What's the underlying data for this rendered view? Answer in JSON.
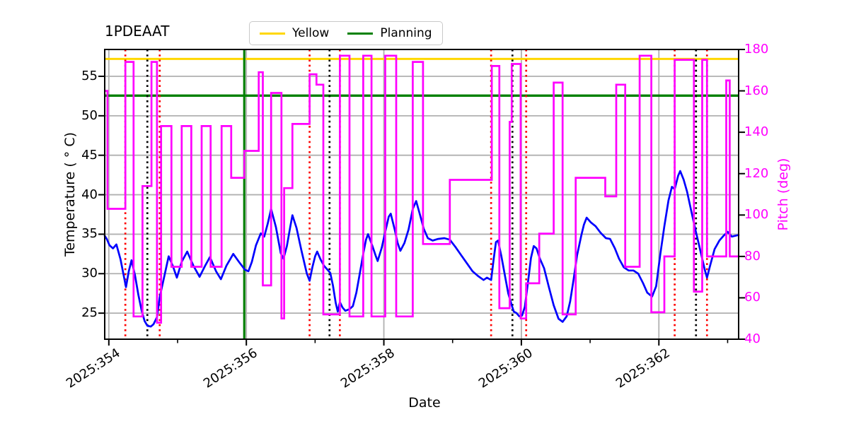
{
  "chart_data": {
    "type": "line",
    "title": "1PDEAAT",
    "xlabel": "Date",
    "ylabel_left": "Temperature ( ° C)",
    "ylabel_right": "Pitch (deg)",
    "xlim_doy": [
      353.94,
      363.16
    ],
    "ylim_left": [
      21.7,
      58.4
    ],
    "ylim_right": [
      40,
      180
    ],
    "grid": true,
    "colors": {
      "temperature_line": "#0000ff",
      "pitch_line": "#ff00ff",
      "yellow_limit": "#ffd700",
      "planning_limit": "#008000",
      "red_event_line": "#ff0000",
      "black_event_line": "#000000",
      "grid_line": "#b0b0b0",
      "right_axis_text": "#ff00ff"
    },
    "x_ticks": [
      {
        "day": 354,
        "label": "2025:354"
      },
      {
        "day": 356,
        "label": "2025:356"
      },
      {
        "day": 358,
        "label": "2025:358"
      },
      {
        "day": 360,
        "label": "2025:360"
      },
      {
        "day": 362,
        "label": "2025:362"
      }
    ],
    "x_minor_ticks": [
      355,
      357,
      359,
      361,
      363
    ],
    "y_left_ticks": [
      25,
      30,
      35,
      40,
      45,
      50,
      55
    ],
    "y_right_ticks": [
      40,
      60,
      80,
      100,
      120,
      140,
      160,
      180
    ],
    "legend": {
      "position": "top-center",
      "entries": [
        {
          "label": "Yellow",
          "color": "#ffd700"
        },
        {
          "label": "Planning",
          "color": "#008000"
        }
      ]
    },
    "hlines": [
      {
        "name": "yellow-limit",
        "axis": "left",
        "value": 57.2,
        "color": "#ffd700",
        "width": 3
      },
      {
        "name": "planning-limit",
        "axis": "left",
        "value": 52.55,
        "color": "#008000",
        "width": 3.4
      }
    ],
    "vlines": [
      {
        "day": 355.97,
        "color": "#008000",
        "style": "solid"
      },
      {
        "day": 354.24,
        "color": "#ff0000",
        "style": "dotted"
      },
      {
        "day": 354.74,
        "color": "#ff0000",
        "style": "dotted"
      },
      {
        "day": 356.92,
        "color": "#ff0000",
        "style": "dotted"
      },
      {
        "day": 357.36,
        "color": "#ff0000",
        "style": "dotted"
      },
      {
        "day": 359.56,
        "color": "#ff0000",
        "style": "dotted"
      },
      {
        "day": 360.07,
        "color": "#ff0000",
        "style": "dotted"
      },
      {
        "day": 362.23,
        "color": "#ff0000",
        "style": "dotted"
      },
      {
        "day": 362.7,
        "color": "#ff0000",
        "style": "dotted"
      },
      {
        "day": 354.56,
        "color": "#000000",
        "style": "dotted"
      },
      {
        "day": 357.21,
        "color": "#000000",
        "style": "dotted"
      },
      {
        "day": 359.87,
        "color": "#000000",
        "style": "dotted"
      },
      {
        "day": 362.54,
        "color": "#000000",
        "style": "dotted"
      }
    ],
    "series": [
      {
        "name": "temperature",
        "axis": "left",
        "color": "#0000ff",
        "style": "line",
        "points": [
          [
            353.94,
            34.8
          ],
          [
            353.97,
            34.4
          ],
          [
            354.01,
            33.6
          ],
          [
            354.06,
            33.2
          ],
          [
            354.11,
            33.7
          ],
          [
            354.17,
            31.8
          ],
          [
            354.22,
            29.6
          ],
          [
            354.25,
            28.3
          ],
          [
            354.29,
            30.3
          ],
          [
            354.33,
            31.7
          ],
          [
            354.38,
            29.8
          ],
          [
            354.43,
            27.3
          ],
          [
            354.48,
            25.2
          ],
          [
            354.52,
            24.0
          ],
          [
            354.56,
            23.4
          ],
          [
            354.61,
            23.3
          ],
          [
            354.65,
            23.6
          ],
          [
            354.7,
            24.5
          ],
          [
            354.74,
            27.0
          ],
          [
            354.79,
            29.0
          ],
          [
            354.83,
            30.6
          ],
          [
            354.87,
            32.2
          ],
          [
            354.93,
            31.0
          ],
          [
            354.99,
            29.5
          ],
          [
            355.06,
            31.5
          ],
          [
            355.14,
            32.8
          ],
          [
            355.23,
            31.0
          ],
          [
            355.32,
            29.6
          ],
          [
            355.4,
            31.0
          ],
          [
            355.47,
            32.1
          ],
          [
            355.56,
            30.3
          ],
          [
            355.63,
            29.3
          ],
          [
            355.71,
            31.0
          ],
          [
            355.81,
            32.5
          ],
          [
            355.9,
            31.4
          ],
          [
            355.98,
            30.5
          ],
          [
            356.03,
            30.3
          ],
          [
            356.08,
            31.5
          ],
          [
            356.14,
            33.6
          ],
          [
            356.21,
            35.1
          ],
          [
            356.26,
            34.7
          ],
          [
            356.31,
            36.3
          ],
          [
            356.36,
            38.2
          ],
          [
            356.43,
            35.9
          ],
          [
            356.5,
            32.6
          ],
          [
            356.54,
            31.9
          ],
          [
            356.59,
            33.5
          ],
          [
            356.64,
            36.0
          ],
          [
            356.67,
            37.4
          ],
          [
            356.73,
            35.8
          ],
          [
            356.8,
            33.0
          ],
          [
            356.88,
            30.0
          ],
          [
            356.92,
            29.1
          ],
          [
            356.96,
            30.8
          ],
          [
            357.0,
            32.2
          ],
          [
            357.03,
            32.8
          ],
          [
            357.08,
            31.8
          ],
          [
            357.13,
            31.0
          ],
          [
            357.19,
            30.4
          ],
          [
            357.22,
            30.1
          ],
          [
            357.26,
            28.5
          ],
          [
            357.3,
            26.3
          ],
          [
            357.33,
            25.2
          ],
          [
            357.36,
            26.4
          ],
          [
            357.4,
            25.7
          ],
          [
            357.44,
            25.3
          ],
          [
            357.5,
            25.5
          ],
          [
            357.55,
            25.9
          ],
          [
            357.6,
            27.6
          ],
          [
            357.65,
            30.0
          ],
          [
            357.7,
            32.5
          ],
          [
            357.74,
            34.3
          ],
          [
            357.77,
            35.0
          ],
          [
            357.83,
            33.6
          ],
          [
            357.88,
            32.3
          ],
          [
            357.91,
            31.6
          ],
          [
            357.97,
            33.3
          ],
          [
            358.02,
            35.3
          ],
          [
            358.07,
            37.2
          ],
          [
            358.1,
            37.6
          ],
          [
            358.16,
            35.5
          ],
          [
            358.2,
            33.9
          ],
          [
            358.24,
            32.9
          ],
          [
            358.3,
            33.9
          ],
          [
            358.36,
            35.6
          ],
          [
            358.42,
            38.2
          ],
          [
            358.47,
            39.2
          ],
          [
            358.53,
            37.3
          ],
          [
            358.58,
            35.7
          ],
          [
            358.64,
            34.5
          ],
          [
            358.71,
            34.2
          ],
          [
            358.79,
            34.4
          ],
          [
            358.88,
            34.5
          ],
          [
            358.96,
            34.3
          ],
          [
            359.04,
            33.4
          ],
          [
            359.12,
            32.4
          ],
          [
            359.21,
            31.3
          ],
          [
            359.29,
            30.3
          ],
          [
            359.37,
            29.7
          ],
          [
            359.45,
            29.2
          ],
          [
            359.5,
            29.5
          ],
          [
            359.56,
            29.2
          ],
          [
            359.6,
            32.0
          ],
          [
            359.63,
            34.0
          ],
          [
            359.66,
            34.2
          ],
          [
            359.71,
            32.2
          ],
          [
            359.76,
            29.8
          ],
          [
            359.81,
            27.5
          ],
          [
            359.86,
            26.0
          ],
          [
            359.89,
            25.2
          ],
          [
            359.93,
            25.0
          ],
          [
            359.97,
            24.6
          ],
          [
            360.01,
            24.7
          ],
          [
            360.05,
            25.8
          ],
          [
            360.09,
            28.5
          ],
          [
            360.14,
            32.0
          ],
          [
            360.18,
            33.5
          ],
          [
            360.22,
            33.2
          ],
          [
            360.27,
            31.9
          ],
          [
            360.33,
            30.7
          ],
          [
            360.4,
            28.3
          ],
          [
            360.47,
            26.0
          ],
          [
            360.54,
            24.3
          ],
          [
            360.6,
            23.9
          ],
          [
            360.66,
            24.6
          ],
          [
            360.71,
            26.5
          ],
          [
            360.76,
            29.3
          ],
          [
            360.81,
            32.3
          ],
          [
            360.87,
            34.8
          ],
          [
            360.91,
            36.2
          ],
          [
            360.95,
            37.1
          ],
          [
            361.01,
            36.5
          ],
          [
            361.08,
            36.0
          ],
          [
            361.15,
            35.2
          ],
          [
            361.23,
            34.5
          ],
          [
            361.29,
            34.4
          ],
          [
            361.36,
            33.2
          ],
          [
            361.42,
            31.9
          ],
          [
            361.49,
            30.8
          ],
          [
            361.56,
            30.4
          ],
          [
            361.63,
            30.4
          ],
          [
            361.7,
            30.0
          ],
          [
            361.77,
            28.8
          ],
          [
            361.83,
            27.6
          ],
          [
            361.9,
            27.1
          ],
          [
            361.96,
            28.4
          ],
          [
            362.02,
            32.4
          ],
          [
            362.08,
            36.0
          ],
          [
            362.14,
            39.3
          ],
          [
            362.19,
            41.0
          ],
          [
            362.23,
            40.7
          ],
          [
            362.28,
            42.4
          ],
          [
            362.31,
            43.0
          ],
          [
            362.36,
            41.9
          ],
          [
            362.41,
            40.4
          ],
          [
            362.47,
            38.0
          ],
          [
            362.53,
            35.6
          ],
          [
            362.58,
            33.8
          ],
          [
            362.63,
            31.9
          ],
          [
            362.67,
            30.4
          ],
          [
            362.7,
            29.5
          ],
          [
            362.75,
            31.2
          ],
          [
            362.81,
            33.1
          ],
          [
            362.88,
            34.2
          ],
          [
            362.94,
            34.8
          ],
          [
            363.0,
            35.3
          ],
          [
            363.06,
            34.7
          ],
          [
            363.11,
            34.8
          ],
          [
            363.16,
            34.9
          ]
        ]
      },
      {
        "name": "pitch",
        "axis": "right",
        "color": "#ff00ff",
        "style": "step-after",
        "points": [
          [
            353.95,
            160
          ],
          [
            353.98,
            103
          ],
          [
            354.24,
            174
          ],
          [
            354.36,
            51
          ],
          [
            354.49,
            114
          ],
          [
            354.62,
            174
          ],
          [
            354.7,
            48
          ],
          [
            354.76,
            143
          ],
          [
            354.91,
            75
          ],
          [
            355.06,
            143
          ],
          [
            355.2,
            75
          ],
          [
            355.35,
            143
          ],
          [
            355.48,
            75
          ],
          [
            355.64,
            143
          ],
          [
            355.78,
            118
          ],
          [
            355.97,
            131
          ],
          [
            356.18,
            169
          ],
          [
            356.24,
            66
          ],
          [
            356.36,
            159
          ],
          [
            356.51,
            50
          ],
          [
            356.55,
            113
          ],
          [
            356.67,
            144
          ],
          [
            356.92,
            168
          ],
          [
            357.02,
            163
          ],
          [
            357.12,
            52
          ],
          [
            357.36,
            177
          ],
          [
            357.5,
            51
          ],
          [
            357.7,
            177
          ],
          [
            357.82,
            51
          ],
          [
            358.02,
            177
          ],
          [
            358.18,
            51
          ],
          [
            358.42,
            174
          ],
          [
            358.57,
            86
          ],
          [
            358.96,
            117
          ],
          [
            359.57,
            172
          ],
          [
            359.68,
            55
          ],
          [
            359.83,
            145
          ],
          [
            359.86,
            173
          ],
          [
            359.99,
            50
          ],
          [
            360.07,
            67
          ],
          [
            360.26,
            91
          ],
          [
            360.47,
            164
          ],
          [
            360.6,
            52
          ],
          [
            360.79,
            118
          ],
          [
            361.22,
            109
          ],
          [
            361.38,
            163
          ],
          [
            361.51,
            75
          ],
          [
            361.72,
            177
          ],
          [
            361.89,
            53
          ],
          [
            362.08,
            80
          ],
          [
            362.23,
            175
          ],
          [
            362.51,
            63
          ],
          [
            362.63,
            175
          ],
          [
            362.7,
            80
          ],
          [
            362.98,
            165
          ],
          [
            363.03,
            80
          ]
        ]
      }
    ]
  }
}
